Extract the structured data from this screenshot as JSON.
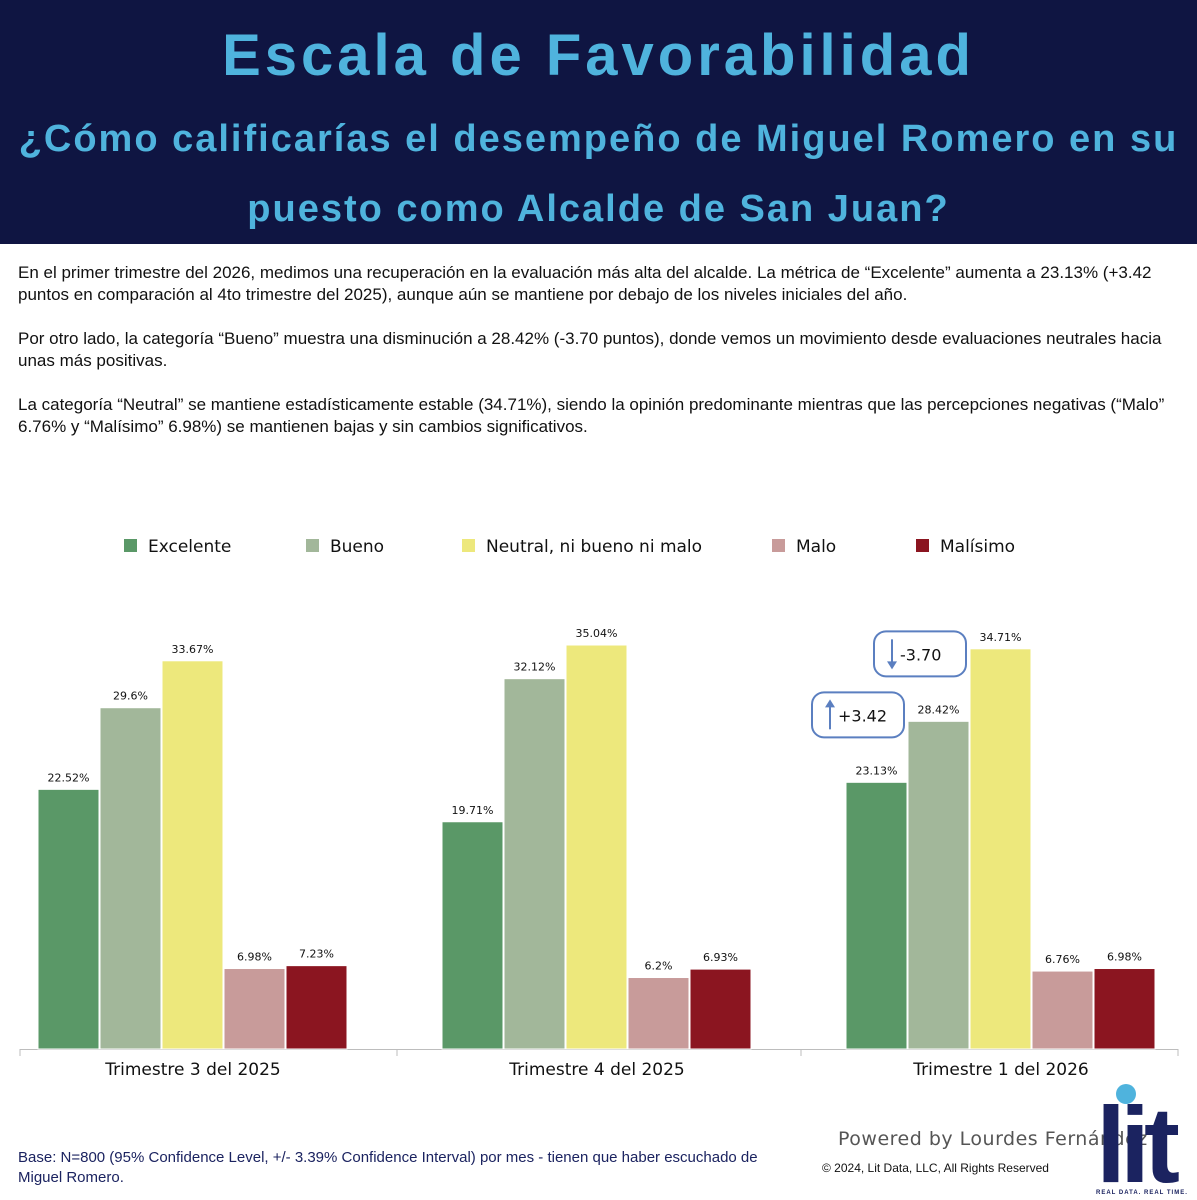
{
  "header": {
    "title": "Escala de Favorabilidad",
    "subtitle_line1": "¿Cómo calificarías el desempeño de Miguel Romero en su",
    "subtitle_line2": "puesto como Alcalde de San Juan?"
  },
  "paragraphs": {
    "p1": "En el primer trimestre del 2026, medimos una recuperación en la evaluación más alta del alcalde. La métrica de “Excelente” aumenta a 23.13% (+3.42 puntos en comparación al 4to trimestre del 2025), aunque aún se mantiene por debajo de los niveles iniciales del año.",
    "p2": "Por otro lado, la categoría “Bueno” muestra una disminución a 28.42% (-3.70 puntos), donde vemos un movimiento desde evaluaciones neutrales hacia unas más positivas.",
    "p3": "La categoría “Neutral” se mantiene estadísticamente estable (34.71%), siendo  la opinión predominante mientras que las percepciones negativas (“Malo” 6.76% y “Malísimo” 6.98%) se mantienen bajas y sin cambios significativos."
  },
  "chart_data": {
    "type": "bar",
    "categories": [
      "Trimestre 3 del 2025",
      "Trimestre 4 del 2025",
      "Trimestre 1 del 2026"
    ],
    "series": [
      {
        "name": "Excelente",
        "color": "#5a9867",
        "values": [
          22.52,
          19.71,
          23.13
        ],
        "labels": [
          "22.52%",
          "19.71%",
          "23.13%"
        ]
      },
      {
        "name": "Bueno",
        "color": "#a2b79a",
        "values": [
          29.6,
          32.12,
          28.42
        ],
        "labels": [
          "29.6%",
          "32.12%",
          "28.42%"
        ]
      },
      {
        "name": "Neutral, ni bueno ni malo",
        "color": "#ede87c",
        "values": [
          33.67,
          35.04,
          34.71
        ],
        "labels": [
          "33.67%",
          "35.04%",
          "34.71%"
        ]
      },
      {
        "name": "Malo",
        "color": "#c89b9a",
        "values": [
          6.98,
          6.2,
          6.76
        ],
        "labels": [
          "6.98%",
          "6.2%",
          "6.76%"
        ]
      },
      {
        "name": "Malísimo",
        "color": "#8b1520",
        "values": [
          7.23,
          6.93,
          6.98
        ],
        "labels": [
          "7.23%",
          "6.93%",
          "6.98%"
        ]
      }
    ],
    "ylim": [
      0,
      35.04
    ],
    "legend_position": "top",
    "grid": false,
    "annotations": [
      {
        "text": "+3.42",
        "direction": "up",
        "category": "Trimestre 1 del 2026",
        "series": "Excelente"
      },
      {
        "text": "-3.70",
        "direction": "down",
        "category": "Trimestre 1 del 2026",
        "series": "Bueno"
      }
    ],
    "annotation_color": "#5b7fc0"
  },
  "footer": {
    "base_note": "Base: N=800 (95% Confidence Level, +/- 3.39% Confidence Interval) por mes - tienen que haber escuchado de Miguel Romero.",
    "powered_by": "Powered by Lourdes Fernández",
    "copyright": "© 2024, Lit Data, LLC, All Rights Reserved",
    "logo_text": "lit",
    "logo_tagline": "REAL DATA. REAL TIME.",
    "logo_color": "#1b2360",
    "logo_dot_color": "#4fb3dd"
  }
}
